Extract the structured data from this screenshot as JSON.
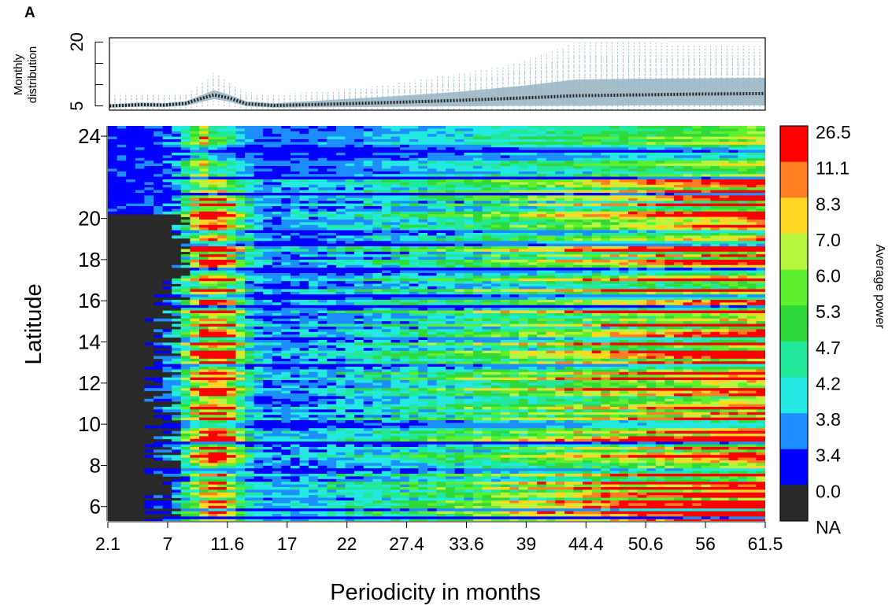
{
  "panel_label": "A",
  "colors": {
    "frame": "#000000",
    "band_fill": "#9bb7c6",
    "whisker": "#9dc3cc",
    "median": "#222222",
    "na": "#262626"
  },
  "chart_data": [
    {
      "type": "line",
      "title": "",
      "xlabel": "",
      "ylabel": "Monthly distribution",
      "ylabel_lines": [
        "Monthly",
        "distribution"
      ],
      "xlim": [
        2.1,
        61.5
      ],
      "ylim": [
        4,
        21
      ],
      "yticks": [
        5,
        10,
        15,
        20
      ],
      "ytick_labels": [
        "5",
        "",
        "",
        "20"
      ],
      "x": [
        2.1,
        5,
        7,
        9,
        10.5,
        11.6,
        13,
        14.5,
        17,
        22,
        27.4,
        33.6,
        39,
        44.4,
        50.6,
        56,
        61.5
      ],
      "series": [
        {
          "role": "median",
          "values": [
            5.0,
            5.3,
            5.2,
            5.6,
            6.8,
            7.6,
            6.8,
            5.5,
            5.1,
            5.4,
            5.8,
            6.3,
            6.8,
            7.4,
            7.6,
            7.8,
            7.9
          ]
        },
        {
          "role": "band_lower",
          "values": [
            4.6,
            4.8,
            4.7,
            5.0,
            6.0,
            6.6,
            6.0,
            4.9,
            4.6,
            4.7,
            4.8,
            4.9,
            5.0,
            5.0,
            5.1,
            5.1,
            5.1
          ]
        },
        {
          "role": "band_upper",
          "values": [
            5.4,
            5.8,
            5.6,
            6.1,
            7.6,
            8.7,
            7.6,
            6.1,
            5.6,
            6.4,
            7.2,
            8.3,
            9.6,
            11.2,
            11.4,
            11.5,
            11.6
          ]
        },
        {
          "role": "whisker_low",
          "values": [
            4.2,
            4.2,
            4.2,
            4.3,
            4.8,
            5.2,
            4.8,
            4.3,
            4.2,
            4.2,
            4.2,
            4.1,
            4.1,
            4.1,
            4.0,
            4.0,
            4.0
          ]
        },
        {
          "role": "whisker_high",
          "values": [
            8.0,
            8.0,
            7.6,
            8.0,
            10.5,
            13.0,
            10.5,
            8.2,
            7.8,
            8.5,
            10.0,
            12.5,
            15.0,
            20.0,
            20.0,
            19.0,
            19.0
          ]
        }
      ]
    },
    {
      "type": "heatmap",
      "title": "",
      "xlabel": "Periodicity in months",
      "ylabel": "Latitude",
      "xticks": [
        "2.1",
        "7",
        "11.6",
        "17",
        "22",
        "27.4",
        "33.6",
        "39",
        "44.4",
        "50.6",
        "56",
        "61.5"
      ],
      "yticks": [
        6,
        8,
        10,
        12,
        14,
        16,
        18,
        20,
        24
      ],
      "ylim": [
        5.3,
        24.5
      ],
      "legend_title": "Average power",
      "legend_labels": [
        "26.5",
        "11.1",
        "8.3",
        "7.0",
        "6.0",
        "5.3",
        "4.7",
        "4.2",
        "3.8",
        "3.4",
        "0.0",
        "NA"
      ],
      "legend_colors": [
        "#ff0000",
        "#ff7e22",
        "#ffd722",
        "#b7f53e",
        "#5ef02e",
        "#2fd93a",
        "#21e89a",
        "#24e8e2",
        "#1d8eff",
        "#0000ff",
        "#292929"
      ],
      "pattern_summary": {
        "x_features": [
          {
            "x_months": 11.6,
            "description": "strong annual band"
          },
          {
            "x_months": 50.6,
            "description": "strong multi-year power"
          }
        ]
      }
    }
  ]
}
